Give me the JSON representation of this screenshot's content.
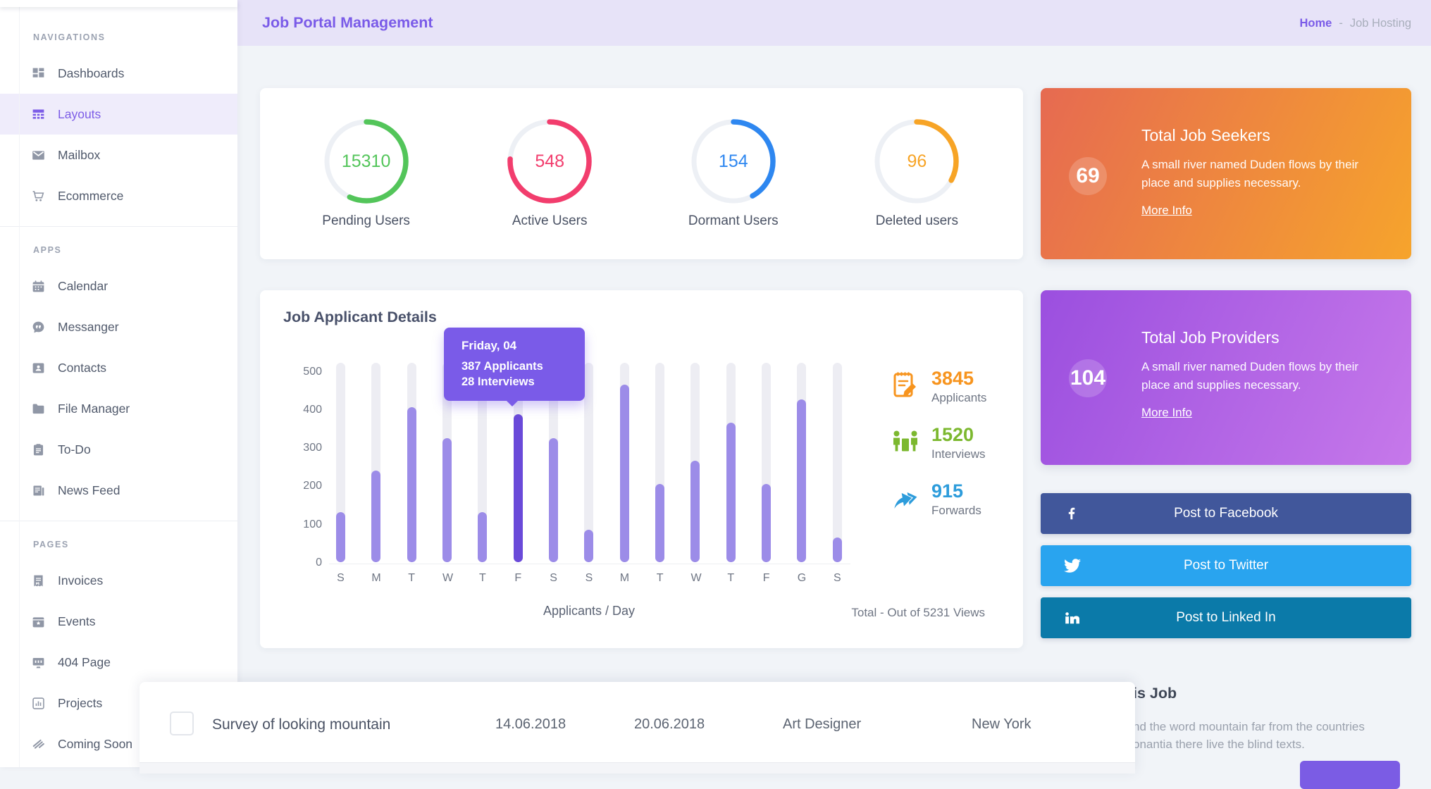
{
  "header": {
    "title": "Job Portal Management"
  },
  "breadcrumb": {
    "home": "Home",
    "separator": "-",
    "current": "Job Hosting"
  },
  "sidebar": {
    "sections": [
      {
        "label": "NAVIGATIONS",
        "items": [
          {
            "label": "Dashboards",
            "icon": "dashboard-grid-icon",
            "active": false
          },
          {
            "label": "Layouts",
            "icon": "layouts-table-icon",
            "active": true
          },
          {
            "label": "Mailbox",
            "icon": "mailbox-envelope-icon",
            "active": false
          },
          {
            "label": "Ecommerce",
            "icon": "ecommerce-cart-icon",
            "active": false
          }
        ]
      },
      {
        "label": "APPS",
        "items": [
          {
            "label": "Calendar",
            "icon": "calendar-icon",
            "active": false
          },
          {
            "label": "Messanger",
            "icon": "messanger-chat-icon",
            "active": false
          },
          {
            "label": "Contacts",
            "icon": "contacts-card-icon",
            "active": false
          },
          {
            "label": "File Manager",
            "icon": "file-manager-folder-icon",
            "active": false
          },
          {
            "label": "To-Do",
            "icon": "todo-clipboard-icon",
            "active": false
          },
          {
            "label": "News Feed",
            "icon": "news-feed-icon",
            "active": false
          }
        ]
      },
      {
        "label": "PAGES",
        "items": [
          {
            "label": "Invoices",
            "icon": "invoices-receipt-icon",
            "active": false
          },
          {
            "label": "Events",
            "icon": "events-calendar-icon",
            "active": false
          },
          {
            "label": "404 Page",
            "icon": "404-monitor-icon",
            "active": false
          },
          {
            "label": "Projects",
            "icon": "projects-chart-icon",
            "active": false
          },
          {
            "label": "Coming Soon",
            "icon": "coming-soon-icon",
            "active": false
          }
        ]
      }
    ]
  },
  "user_stats": [
    {
      "value": "15310",
      "label": "Pending Users",
      "color": "#53C55A",
      "percent": 57
    },
    {
      "value": "548",
      "label": "Active Users",
      "color": "#F23D6D",
      "percent": 76
    },
    {
      "value": "154",
      "label": "Dormant Users",
      "color": "#2E87F0",
      "percent": 42
    },
    {
      "value": "96",
      "label": "Deleted users",
      "color": "#F7A426",
      "percent": 33
    }
  ],
  "seekers_card": {
    "value": "69",
    "title": "Total Job Seekers",
    "description": "A small river named Duden flows by their place and supplies necessary.",
    "link": "More Info",
    "gradient": [
      "#E66A51",
      "#F6A42C"
    ]
  },
  "providers_card": {
    "value": "104",
    "title": "Total Job Providers",
    "description": "A small river named Duden flows by their place and supplies necessary.",
    "link": "More Info",
    "gradient": [
      "#9B4FDF",
      "#C678EA"
    ]
  },
  "chart_data": {
    "type": "bar",
    "title": "Job Applicant Details",
    "categories": [
      "S",
      "M",
      "T",
      "W",
      "T",
      "F",
      "S",
      "S",
      "M",
      "T",
      "W",
      "T",
      "F",
      "G",
      "S"
    ],
    "values": [
      130,
      240,
      405,
      325,
      130,
      387,
      325,
      85,
      465,
      205,
      265,
      365,
      205,
      425,
      65
    ],
    "highlighted_index": 5,
    "y_ticks": [
      0,
      100,
      200,
      300,
      400,
      500
    ],
    "ylim": [
      0,
      520
    ],
    "grid": false,
    "legend": false,
    "bar_color": "#9C8CE8",
    "highlight_color": "#6A4AD9",
    "track_color": "#EDEDF3",
    "tooltip": {
      "title": "Friday, 04",
      "line1": "387 Applicants",
      "line2": "28 Interviews",
      "color": "#7A5BE8"
    },
    "xlabel": "Applicants / Day",
    "footer_right": "Total - Out of 5231 Views",
    "side_stats": [
      {
        "value": "3845",
        "label": "Applicants",
        "icon": "applicants-note-icon",
        "color": "#F7941E"
      },
      {
        "value": "1520",
        "label": "Interviews",
        "icon": "interviews-people-icon",
        "color": "#7CB82F"
      },
      {
        "value": "915",
        "label": "Forwards",
        "icon": "forwards-arrows-icon",
        "color": "#2D9CDB"
      }
    ]
  },
  "social_buttons": [
    {
      "label": "Post to Facebook",
      "icon": "facebook-icon",
      "color": "#41579B"
    },
    {
      "label": "Post to Twitter",
      "icon": "twitter-icon",
      "color": "#29A4EF"
    },
    {
      "label": "Post to Linked In",
      "icon": "linkedin-icon",
      "color": "#0B7AA9"
    }
  ],
  "jobs_table": {
    "row": {
      "title": "Survey of looking mountain",
      "start_date": "14.06.2018",
      "end_date": "20.06.2018",
      "role": "Art Designer",
      "city": "New York"
    }
  },
  "job_panel": {
    "heading_fragment": "is Job",
    "line1": "nd the word mountain far from the countries",
    "line2": "onantia there live the blind texts.",
    "button_color": "#7B5CE4"
  }
}
